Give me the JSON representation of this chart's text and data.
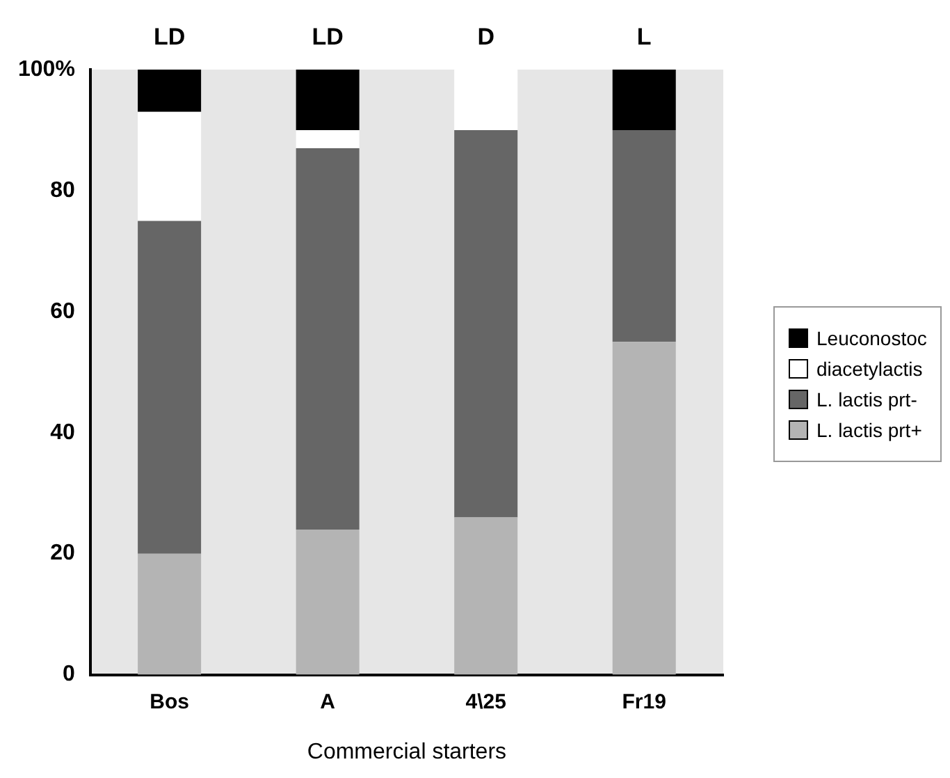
{
  "chart_data": {
    "type": "bar",
    "stacked": true,
    "xlabel": "Commercial starters",
    "categories": [
      "Bos",
      "A",
      "4\\25",
      "Fr19"
    ],
    "series": [
      {
        "name": "L. lactis prt+",
        "color": "#b4b4b4",
        "values": [
          20,
          24,
          26,
          55
        ]
      },
      {
        "name": "L. lactis prt-",
        "color": "#666666",
        "values": [
          55,
          63,
          64,
          35
        ]
      },
      {
        "name": "diacetylactis",
        "color": "#ffffff",
        "values": [
          18,
          3,
          10,
          0
        ]
      },
      {
        "name": "Leuconostoc",
        "color": "#000000",
        "values": [
          7,
          10,
          0,
          10
        ]
      }
    ],
    "ylim": [
      0,
      100
    ],
    "yticks": [
      0,
      20,
      40,
      60,
      80,
      {
        "value": 100,
        "label": "100%"
      }
    ],
    "grid": false,
    "legend": "right",
    "annotations": [
      "LD",
      "LD",
      "D",
      "L"
    ]
  }
}
